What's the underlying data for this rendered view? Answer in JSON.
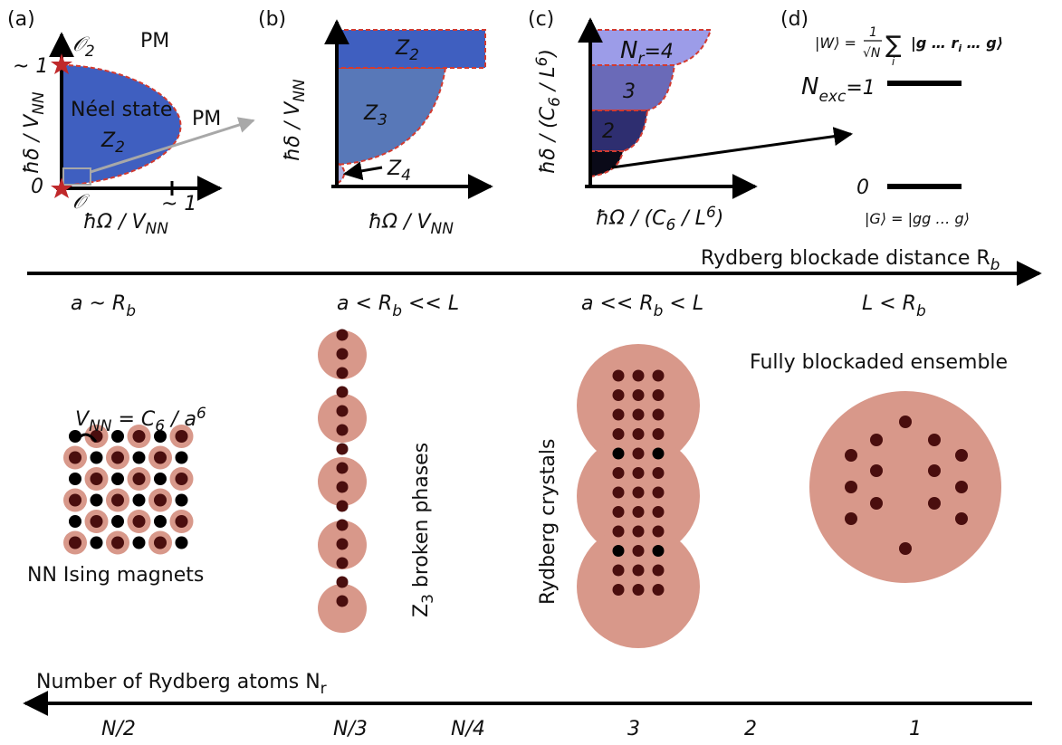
{
  "colors": {
    "phase_blue": "#3f5fc0",
    "phase_blue_light": "#5878b8",
    "phase_blue_pale": "#aab0e0",
    "phase_boundary": "#d23a30",
    "blockade_disk": "#d8988a",
    "atom_dark": "#4a0e0e",
    "atom_black": "#000000",
    "star": "#c0282a",
    "grey_box": "#a8a8a8"
  },
  "panel_a": {
    "tag": "(a)",
    "op2": "𝒪",
    "op2_sub": "2",
    "op": "𝒪",
    "y_tick_1": "~ 1",
    "y_tick_0": "0",
    "x_tick_1": "~ 1",
    "pm_top": "PM",
    "pm_right": "PM",
    "phase_name": "Néel state",
    "phase_z": "Z",
    "phase_z_sub": "2",
    "ylabel": "ħδ / V",
    "ylabel_sub": "NN",
    "xlabel": "ħΩ / V",
    "xlabel_sub": "NN"
  },
  "panel_b": {
    "tag": "(b)",
    "z2": "Z",
    "z2_sub": "2",
    "z3": "Z",
    "z3_sub": "3",
    "z4": "Z",
    "z4_sub": "4",
    "ylabel": "ħδ / V",
    "ylabel_sub": "NN",
    "xlabel": "ħΩ / V",
    "xlabel_sub": "NN"
  },
  "panel_c": {
    "tag": "(c)",
    "n_label": "N",
    "n_sub": "r",
    "n_val": "=4",
    "lobe3": "3",
    "lobe2": "2",
    "ylabel": "ħδ / (C",
    "ylabel_sub": "6",
    "ylabel_mid": " / L",
    "ylabel_sup": "6",
    "ylabel_end": ")",
    "xlabel": "ħΩ / (C",
    "xlabel_sub": "6",
    "xlabel_mid": " / L",
    "xlabel_sup": "6",
    "xlabel_end": ")"
  },
  "panel_d": {
    "tag": "(d)",
    "w_lhs": "|W⟩ =",
    "w_num": "1",
    "w_den": "√N",
    "w_sum": "∑",
    "w_idx": "i",
    "w_ket": "|g … r",
    "w_ket_sub": "i",
    "w_ket_end": " … g⟩",
    "nexc": "N",
    "nexc_sub": "exc",
    "nexc_val": "=1",
    "level0": "0",
    "g_state": "|G⟩ = |gg … g⟩"
  },
  "rb_axis": {
    "label": "Rydberg blockade distance R",
    "label_sub": "b",
    "regimes": [
      {
        "pre": "a ~ R",
        "sub": "b",
        "post": ""
      },
      {
        "pre": "a <  R",
        "sub": "b",
        "post": " << L"
      },
      {
        "pre": "a << R",
        "sub": "b",
        "post": " < L"
      },
      {
        "pre": "L < R",
        "sub": "b",
        "post": ""
      }
    ]
  },
  "illustrations": {
    "vnn_formula_lhs": "V",
    "vnn_formula_sub": "NN",
    "vnn_formula_mid": " = C",
    "vnn_formula_sub2": "6",
    "vnn_formula_end": " / a",
    "vnn_formula_sup": "6",
    "ising_caption": "NN Ising magnets",
    "z3_caption": "Z",
    "z3_caption_sub": "3",
    "z3_caption_end": " broken phases",
    "crystal_caption": "Rydberg crystals",
    "blockaded_caption": "Fully blockaded ensemble"
  },
  "nr_axis": {
    "label": "Number of Rydberg atoms N",
    "label_sub": "r",
    "ticks": [
      "N/2",
      "N/3",
      "N/4",
      "3",
      "2",
      "1"
    ]
  }
}
